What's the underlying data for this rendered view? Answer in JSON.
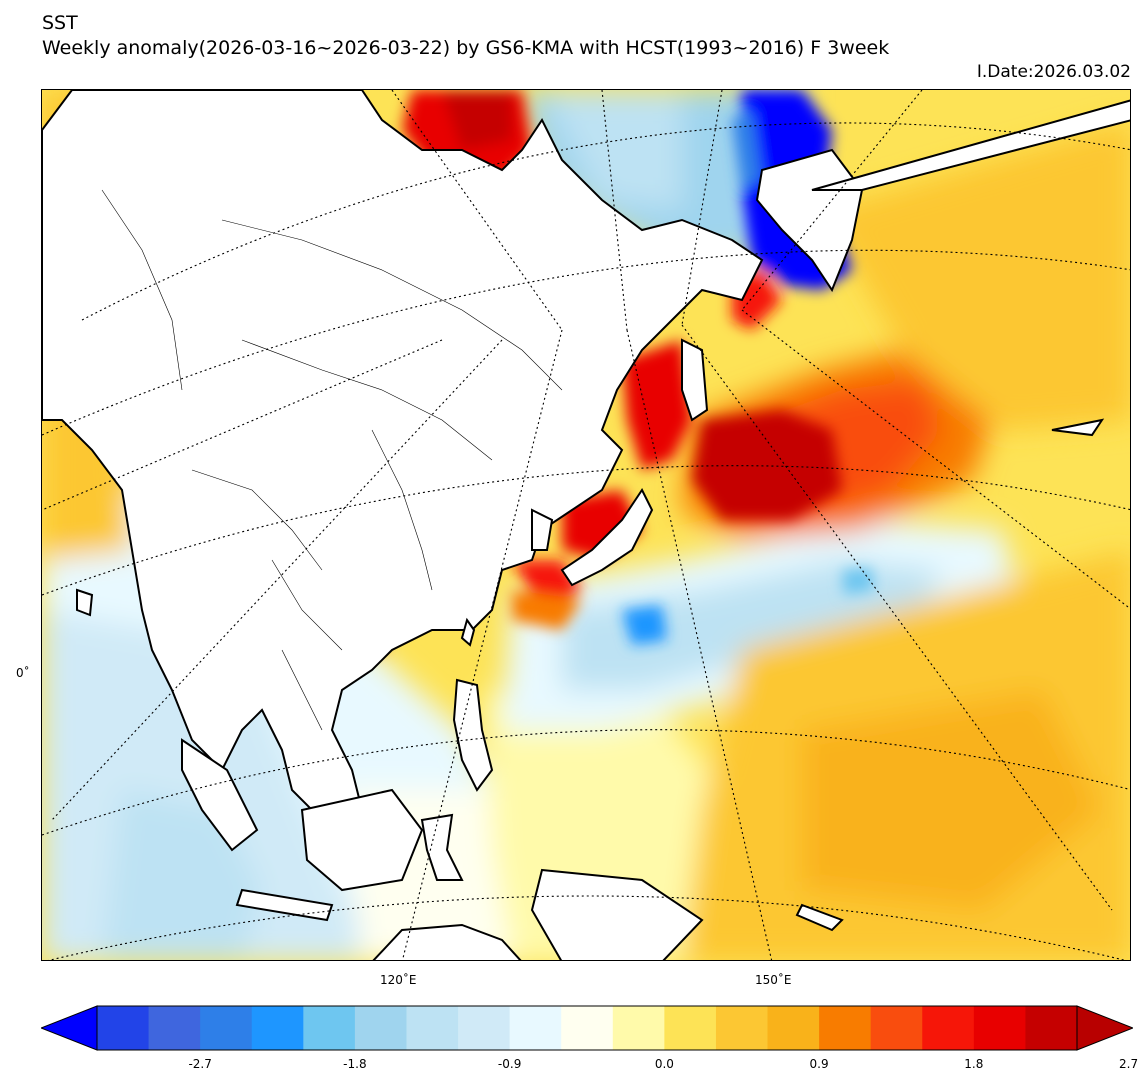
{
  "header": {
    "variable": "SST",
    "subtitle": "Weekly anomaly(2026-03-16~2026-03-22) by GS6-KMA with HCST(1993~2016) F 3week",
    "issue_date": "I.Date:2026.03.02"
  },
  "map": {
    "lon_labels": [
      "120˚E",
      "150˚E"
    ],
    "lat_labels": [
      "0˚"
    ]
  },
  "colorbar": {
    "colors": [
      "#0000ff",
      "#2244e8",
      "#3f66de",
      "#2e7fe8",
      "#1e96ff",
      "#6ec6f0",
      "#9fd4ee",
      "#bde2f3",
      "#d0eaf7",
      "#e8f9ff",
      "#fffff0",
      "#fffaaa",
      "#fde356",
      "#fcc733",
      "#f9b21a",
      "#f87c00",
      "#f94d0e",
      "#f61608",
      "#e80000",
      "#c50000",
      "#b80000"
    ],
    "tick_labels": [
      "-2.7",
      "-1.8",
      "-0.9",
      "0.0",
      "0.9",
      "1.8",
      "2.7"
    ]
  }
}
